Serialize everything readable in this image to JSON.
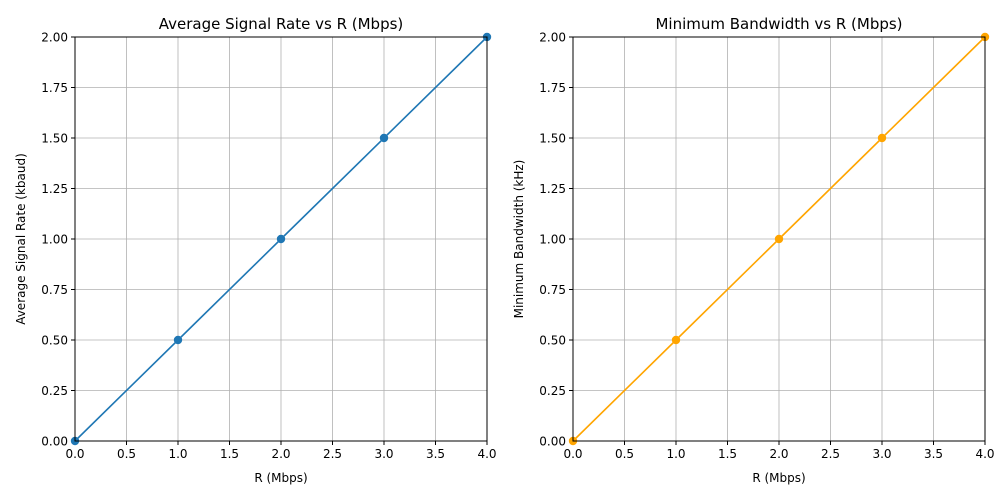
{
  "chart_data": [
    {
      "type": "line",
      "title": "Average Signal Rate vs R (Mbps)",
      "xlabel": "R (Mbps)",
      "ylabel": "Average Signal Rate (kbaud)",
      "xlim": [
        0,
        4
      ],
      "ylim": [
        0,
        2
      ],
      "xticks": [
        "0.0",
        "0.5",
        "1.0",
        "1.5",
        "2.0",
        "2.5",
        "3.0",
        "3.5",
        "4.0"
      ],
      "yticks": [
        "0.00",
        "0.25",
        "0.50",
        "0.75",
        "1.00",
        "1.25",
        "1.50",
        "1.75",
        "2.00"
      ],
      "grid": true,
      "series": [
        {
          "x": [
            0,
            1,
            2,
            3,
            4
          ],
          "values": [
            0,
            0.5,
            1.0,
            1.5,
            2.0
          ],
          "color": "#1f77b4",
          "marker": "circle"
        }
      ]
    },
    {
      "type": "line",
      "title": "Minimum Bandwidth vs R (Mbps)",
      "xlabel": "R (Mbps)",
      "ylabel": "Minimum Bandwidth (kHz)",
      "xlim": [
        0,
        4
      ],
      "ylim": [
        0,
        2
      ],
      "xticks": [
        "0.0",
        "0.5",
        "1.0",
        "1.5",
        "2.0",
        "2.5",
        "3.0",
        "3.5",
        "4.0"
      ],
      "yticks": [
        "0.00",
        "0.25",
        "0.50",
        "0.75",
        "1.00",
        "1.25",
        "1.50",
        "1.75",
        "2.00"
      ],
      "grid": true,
      "series": [
        {
          "x": [
            0,
            1,
            2,
            3,
            4
          ],
          "values": [
            0,
            0.5,
            1.0,
            1.5,
            2.0
          ],
          "color": "#ffa500",
          "marker": "circle"
        }
      ]
    }
  ]
}
